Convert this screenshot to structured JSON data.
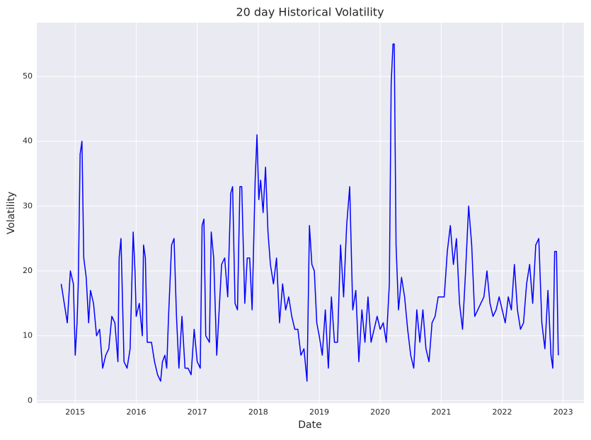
{
  "chart_data": {
    "type": "line",
    "title": "20 day Historical Volatility",
    "x_label": "Date",
    "y_label": "Volatility",
    "x": [
      2014.77,
      2014.82,
      2014.87,
      2014.92,
      2014.97,
      2015.0,
      2015.03,
      2015.05,
      2015.08,
      2015.11,
      2015.14,
      2015.18,
      2015.22,
      2015.25,
      2015.3,
      2015.35,
      2015.4,
      2015.45,
      2015.5,
      2015.55,
      2015.6,
      2015.65,
      2015.7,
      2015.72,
      2015.75,
      2015.8,
      2015.85,
      2015.9,
      2015.95,
      2015.98,
      2016.0,
      2016.05,
      2016.1,
      2016.12,
      2016.15,
      2016.18,
      2016.25,
      2016.3,
      2016.35,
      2016.4,
      2016.43,
      2016.47,
      2016.5,
      2016.53,
      2016.58,
      2016.62,
      2016.66,
      2016.7,
      2016.75,
      2016.8,
      2016.85,
      2016.9,
      2016.95,
      2017.0,
      2017.05,
      2017.08,
      2017.11,
      2017.14,
      2017.2,
      2017.23,
      2017.27,
      2017.32,
      2017.36,
      2017.4,
      2017.45,
      2017.5,
      2017.55,
      2017.58,
      2017.62,
      2017.66,
      2017.7,
      2017.73,
      2017.78,
      2017.82,
      2017.86,
      2017.9,
      2017.95,
      2017.98,
      2018.01,
      2018.04,
      2018.08,
      2018.12,
      2018.16,
      2018.2,
      2018.25,
      2018.3,
      2018.35,
      2018.4,
      2018.45,
      2018.5,
      2018.55,
      2018.6,
      2018.65,
      2018.7,
      2018.75,
      2018.8,
      2018.84,
      2018.88,
      2018.92,
      2018.96,
      2019.0,
      2019.05,
      2019.1,
      2019.15,
      2019.2,
      2019.25,
      2019.3,
      2019.35,
      2019.4,
      2019.45,
      2019.5,
      2019.55,
      2019.6,
      2019.65,
      2019.7,
      2019.75,
      2019.8,
      2019.85,
      2019.9,
      2019.95,
      2020.0,
      2020.05,
      2020.1,
      2020.15,
      2020.18,
      2020.21,
      2020.23,
      2020.26,
      2020.3,
      2020.35,
      2020.4,
      2020.45,
      2020.5,
      2020.55,
      2020.6,
      2020.65,
      2020.7,
      2020.75,
      2020.8,
      2020.85,
      2020.9,
      2020.95,
      2021.0,
      2021.05,
      2021.1,
      2021.15,
      2021.2,
      2021.25,
      2021.3,
      2021.35,
      2021.4,
      2021.45,
      2021.5,
      2021.55,
      2021.6,
      2021.65,
      2021.7,
      2021.75,
      2021.8,
      2021.85,
      2021.9,
      2021.95,
      2022.0,
      2022.05,
      2022.1,
      2022.15,
      2022.2,
      2022.25,
      2022.3,
      2022.35,
      2022.4,
      2022.45,
      2022.5,
      2022.55,
      2022.6,
      2022.65,
      2022.7,
      2022.75,
      2022.8,
      2022.83,
      2022.86,
      2022.89,
      2022.92
    ],
    "values": [
      18,
      15,
      12,
      20,
      18,
      7,
      12,
      18,
      38,
      40,
      22,
      19,
      12,
      17,
      15,
      10,
      11,
      5,
      7,
      8,
      13,
      12,
      6,
      22,
      25,
      6,
      5,
      8,
      26,
      20,
      13,
      15,
      10,
      24,
      22,
      9,
      9,
      6,
      4,
      3,
      6,
      7,
      5,
      13,
      24,
      25,
      13,
      5,
      13,
      5,
      5,
      4,
      11,
      6,
      5,
      27,
      28,
      10,
      9,
      26,
      22,
      7,
      14,
      21,
      22,
      16,
      32,
      33,
      15,
      14,
      33,
      33,
      15,
      22,
      22,
      14,
      34,
      41,
      31,
      34,
      29,
      36,
      26,
      21,
      18,
      22,
      12,
      18,
      14,
      16,
      13,
      11,
      11,
      7,
      8,
      3,
      27,
      21,
      20,
      12,
      10,
      7,
      14,
      5,
      16,
      9,
      9,
      24,
      16,
      27,
      33,
      14,
      17,
      6,
      14,
      9,
      16,
      9,
      11,
      13,
      11,
      12,
      9,
      18,
      49,
      55,
      55,
      24,
      14,
      19,
      16,
      11,
      7,
      5,
      14,
      9,
      14,
      8,
      6,
      12,
      13,
      16,
      16,
      16,
      23,
      27,
      21,
      25,
      15,
      11,
      20,
      30,
      24,
      13,
      14,
      15,
      16,
      20,
      15,
      13,
      14,
      16,
      14,
      12,
      16,
      14,
      21,
      14,
      11,
      12,
      18,
      21,
      15,
      24,
      25,
      12,
      8,
      17,
      7,
      5,
      23,
      23,
      7
    ],
    "color": "#0000ff",
    "xlim": [
      2014.37,
      2023.34
    ],
    "xticks": [
      2015,
      2016,
      2017,
      2018,
      2019,
      2020,
      2021,
      2022,
      2023
    ],
    "ylim": [
      -0.4,
      58.3
    ],
    "yticks": [
      0,
      10,
      20,
      30,
      40,
      50
    ],
    "grid": true
  }
}
